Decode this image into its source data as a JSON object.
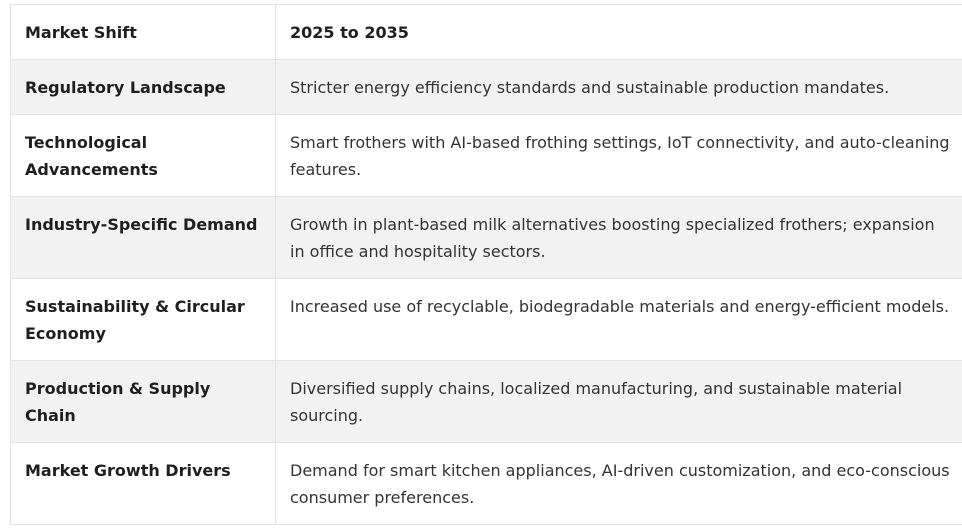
{
  "table": {
    "headers": [
      "Market Shift",
      "2025 to 2035"
    ],
    "rows": [
      {
        "shift": "Regulatory Landscape",
        "outlook": "Stricter energy efficiency standards and sustainable production mandates."
      },
      {
        "shift": "Technological Advancements",
        "outlook": "Smart frothers with AI-based frothing settings, IoT connectivity, and auto-cleaning features."
      },
      {
        "shift": "Industry-Specific Demand",
        "outlook": "Growth in plant-based milk alternatives boosting specialized frothers; expansion in office and hospitality sectors."
      },
      {
        "shift": "Sustainability & Circular Economy",
        "outlook": "Increased use of recyclable, biodegradable materials and energy-efficient models."
      },
      {
        "shift": "Production & Supply Chain",
        "outlook": "Diversified supply chains, localized manufacturing, and sustainable material sourcing."
      },
      {
        "shift": "Market Growth Drivers",
        "outlook": "Demand for smart kitchen appliances, AI-driven customization, and eco-conscious consumer preferences."
      }
    ]
  }
}
